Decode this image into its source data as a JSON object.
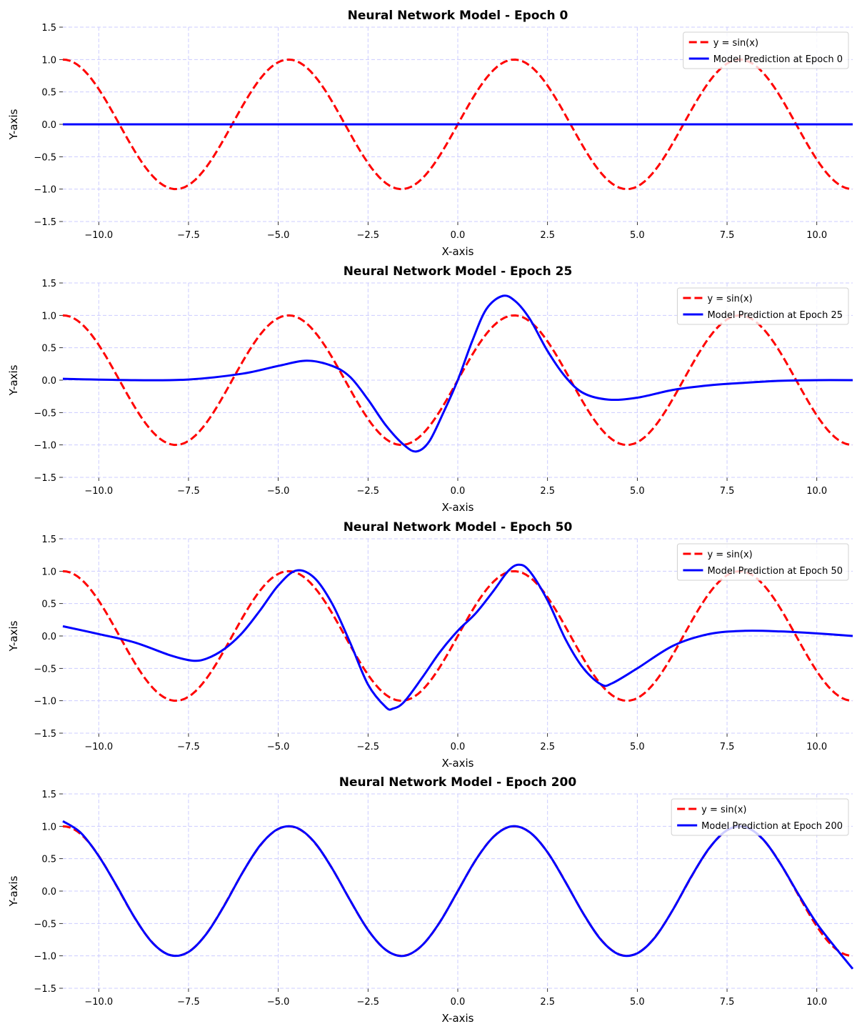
{
  "chart_data": [
    {
      "type": "line",
      "title": "Neural Network Model - Epoch 0",
      "xlabel": "X-axis",
      "ylabel": "Y-axis",
      "xlim": [
        -11,
        11
      ],
      "ylim": [
        -1.5,
        1.5
      ],
      "xticks": [
        "−10.0",
        "−7.5",
        "−5.0",
        "−2.5",
        "0.0",
        "2.5",
        "5.0",
        "7.5",
        "10.0"
      ],
      "yticks": [
        "−1.5",
        "−1.0",
        "−0.5",
        "0.0",
        "0.5",
        "1.0",
        "1.5"
      ],
      "grid": true,
      "legend_position": "top-right",
      "series": [
        {
          "name": "y = sin(x)",
          "color": "#ff0000",
          "style": "dashed",
          "function": "sin"
        },
        {
          "name": "Model Prediction at Epoch 0",
          "color": "#0000ff",
          "style": "solid",
          "x": [
            -11,
            11
          ],
          "y": [
            0,
            0
          ]
        }
      ]
    },
    {
      "type": "line",
      "title": "Neural Network Model - Epoch 25",
      "xlabel": "X-axis",
      "ylabel": "Y-axis",
      "xlim": [
        -11,
        11
      ],
      "ylim": [
        -1.5,
        1.5
      ],
      "xticks": [
        "−10.0",
        "−7.5",
        "−5.0",
        "−2.5",
        "0.0",
        "2.5",
        "5.0",
        "7.5",
        "10.0"
      ],
      "yticks": [
        "−1.5",
        "−1.0",
        "−0.5",
        "0.0",
        "0.5",
        "1.0",
        "1.5"
      ],
      "grid": true,
      "legend_position": "top-right",
      "series": [
        {
          "name": "y = sin(x)",
          "color": "#ff0000",
          "style": "dashed",
          "function": "sin"
        },
        {
          "name": "Model Prediction at Epoch 25",
          "color": "#0000ff",
          "style": "solid",
          "x": [
            -11,
            -9,
            -7.5,
            -6,
            -5,
            -4.2,
            -3.5,
            -3,
            -2.5,
            -2,
            -1.5,
            -1.15,
            -0.8,
            -0.4,
            0,
            0.4,
            0.8,
            1.25,
            1.6,
            2,
            2.5,
            3,
            3.5,
            4.2,
            5,
            6,
            7,
            8,
            9,
            10,
            11
          ],
          "y": [
            0.02,
            0,
            0.01,
            0.1,
            0.22,
            0.3,
            0.22,
            0.05,
            -0.3,
            -0.7,
            -1.0,
            -1.1,
            -0.95,
            -0.5,
            0,
            0.6,
            1.1,
            1.3,
            1.22,
            0.95,
            0.45,
            0.05,
            -0.2,
            -0.3,
            -0.27,
            -0.15,
            -0.08,
            -0.04,
            -0.01,
            0,
            0
          ]
        }
      ]
    },
    {
      "type": "line",
      "title": "Neural Network Model - Epoch 50",
      "xlabel": "X-axis",
      "ylabel": "Y-axis",
      "xlim": [
        -11,
        11
      ],
      "ylim": [
        -1.5,
        1.5
      ],
      "xticks": [
        "−10.0",
        "−7.5",
        "−5.0",
        "−2.5",
        "0.0",
        "2.5",
        "5.0",
        "7.5",
        "10.0"
      ],
      "yticks": [
        "−1.5",
        "−1.0",
        "−0.5",
        "0.0",
        "0.5",
        "1.0",
        "1.5"
      ],
      "grid": true,
      "legend_position": "top-right",
      "series": [
        {
          "name": "y = sin(x)",
          "color": "#ff0000",
          "style": "dashed",
          "function": "sin"
        },
        {
          "name": "Model Prediction at Epoch 50",
          "color": "#0000ff",
          "style": "solid",
          "x": [
            -11,
            -10,
            -9,
            -8,
            -7.4,
            -7,
            -6.5,
            -6,
            -5.5,
            -5,
            -4.5,
            -4,
            -3.5,
            -3,
            -2.5,
            -2,
            -1.8,
            -1.5,
            -1,
            -0.5,
            0,
            0.5,
            1,
            1.4,
            1.7,
            2,
            2.5,
            3,
            3.5,
            4,
            4.3,
            5,
            6,
            7,
            8,
            9,
            10,
            11
          ],
          "y": [
            0.15,
            0.03,
            -0.1,
            -0.3,
            -0.38,
            -0.35,
            -0.2,
            0.05,
            0.4,
            0.78,
            1.01,
            0.9,
            0.5,
            -0.1,
            -0.75,
            -1.1,
            -1.12,
            -1.02,
            -0.65,
            -0.25,
            0.08,
            0.35,
            0.7,
            1.0,
            1.1,
            1.0,
            0.55,
            -0.05,
            -0.5,
            -0.75,
            -0.73,
            -0.5,
            -0.15,
            0.03,
            0.08,
            0.07,
            0.04,
            0
          ]
        }
      ]
    },
    {
      "type": "line",
      "title": "Neural Network Model - Epoch 200",
      "xlabel": "X-axis",
      "ylabel": "Y-axis",
      "xlim": [
        -11,
        11
      ],
      "ylim": [
        -1.5,
        1.5
      ],
      "xticks": [
        "−10.0",
        "−7.5",
        "−5.0",
        "−2.5",
        "0.0",
        "2.5",
        "5.0",
        "7.5",
        "10.0"
      ],
      "yticks": [
        "−1.5",
        "−1.0",
        "−0.5",
        "0.0",
        "0.5",
        "1.0",
        "1.5"
      ],
      "grid": true,
      "legend_position": "top-right",
      "series": [
        {
          "name": "y = sin(x)",
          "color": "#ff0000",
          "style": "dashed",
          "function": "sin"
        },
        {
          "name": "Model Prediction at Epoch 200",
          "color": "#0000ff",
          "style": "solid",
          "x": [
            -11,
            -10.5,
            -10,
            -9.5,
            -9,
            -8.5,
            -8,
            -7.5,
            -7,
            -6.5,
            -6,
            -5.5,
            -5,
            -4.5,
            -4,
            -3.5,
            -3,
            -2.5,
            -2,
            -1.5,
            -1,
            -0.5,
            0,
            0.5,
            1,
            1.5,
            2,
            2.5,
            3,
            3.5,
            4,
            4.5,
            5,
            5.5,
            6,
            6.5,
            7,
            7.5,
            8,
            8.5,
            9,
            9.5,
            10,
            10.5,
            11
          ],
          "y": [
            1.08,
            0.9,
            0.54,
            0.08,
            -0.41,
            -0.8,
            -0.99,
            -0.94,
            -0.66,
            -0.22,
            0.28,
            0.71,
            0.96,
            0.98,
            0.76,
            0.35,
            -0.14,
            -0.6,
            -0.91,
            -1.0,
            -0.84,
            -0.48,
            0,
            0.48,
            0.84,
            1.0,
            0.91,
            0.6,
            0.14,
            -0.35,
            -0.76,
            -0.98,
            -0.96,
            -0.71,
            -0.28,
            0.22,
            0.66,
            0.94,
            0.99,
            0.8,
            0.41,
            -0.06,
            -0.5,
            -0.86,
            -1.2
          ]
        }
      ]
    }
  ]
}
